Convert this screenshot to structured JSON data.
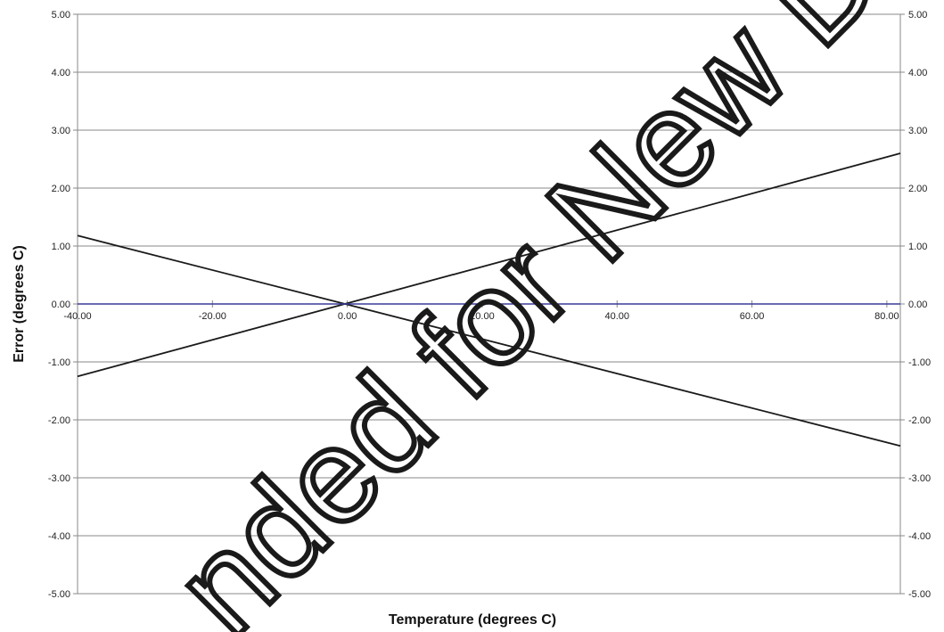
{
  "chart_data": {
    "type": "line",
    "xlabel": "Temperature (degrees C)",
    "ylabel": "Error (degrees C)",
    "xlim": [
      -40,
      82
    ],
    "ylim": [
      -5,
      5
    ],
    "x_ticks": [
      "-40.00",
      "-20.00",
      "0.00",
      "20.00",
      "40.00",
      "60.00",
      "80.00"
    ],
    "x_tick_values": [
      -40,
      -20,
      0,
      20,
      40,
      60,
      80
    ],
    "y_ticks": [
      "5.00",
      "4.00",
      "3.00",
      "2.00",
      "1.00",
      "0.00",
      "-1.00",
      "-2.00",
      "-3.00",
      "-4.00",
      "-5.00"
    ],
    "y_tick_values": [
      5,
      4,
      3,
      2,
      1,
      0,
      -1,
      -2,
      -3,
      -4,
      -5
    ],
    "grid": true,
    "series": [
      {
        "x": [
          -40,
          82
        ],
        "y": [
          -1.25,
          2.6
        ],
        "color": "#1a1a1a"
      },
      {
        "x": [
          -40,
          82
        ],
        "y": [
          1.18,
          -2.45
        ],
        "color": "#1a1a1a"
      },
      {
        "x": [
          -40,
          82
        ],
        "y": [
          0,
          0
        ],
        "color": "#3a3a9a"
      }
    ],
    "colors": {
      "grid": "#8a8a8a",
      "zero_line": "#3a3a9a",
      "series": "#1a1a1a"
    }
  },
  "watermark": {
    "text": "nded for New De"
  }
}
